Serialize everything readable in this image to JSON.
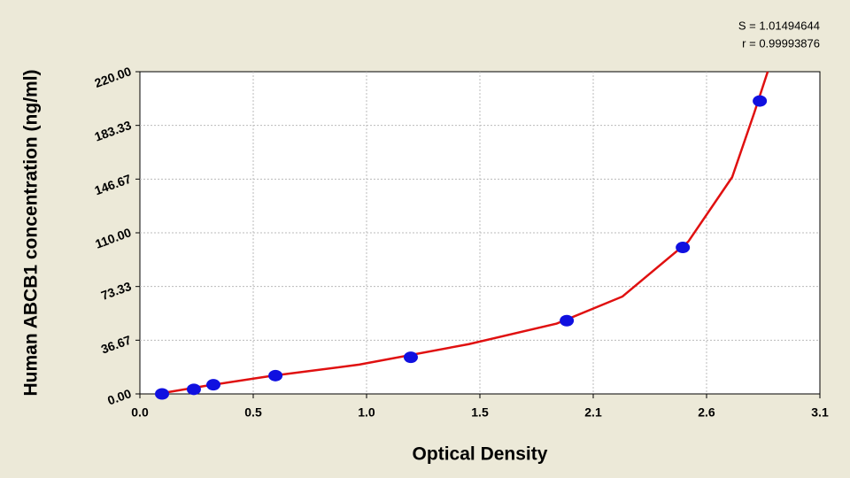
{
  "chart_data": {
    "type": "scatter",
    "annotations": [
      "S = 1.01494644",
      "r = 0.99993876"
    ],
    "x_label": "Optical Density",
    "y_label": "Human ABCB1 concentration (ng/ml)",
    "xlim": [
      0,
      3.1
    ],
    "ylim": [
      0,
      220
    ],
    "xticks": [
      {
        "value": 0,
        "label": "0.0"
      },
      {
        "value": 0.5167,
        "label": "0.5"
      },
      {
        "value": 1.0333,
        "label": "1.0"
      },
      {
        "value": 1.55,
        "label": "1.5"
      },
      {
        "value": 2.0667,
        "label": "2.1"
      },
      {
        "value": 2.5833,
        "label": "2.6"
      },
      {
        "value": 3.1,
        "label": "3.1"
      }
    ],
    "yticks": [
      {
        "value": 0,
        "label": "0.00"
      },
      {
        "value": 36.67,
        "label": "36.67"
      },
      {
        "value": 73.33,
        "label": "73.33"
      },
      {
        "value": 110,
        "label": "110.00"
      },
      {
        "value": 146.67,
        "label": "146.67"
      },
      {
        "value": 183.33,
        "label": "183.33"
      },
      {
        "value": 220,
        "label": "220.00"
      }
    ],
    "grid": true,
    "series": [
      {
        "kind": "points",
        "color": "#1010e0",
        "x": [
          0.101,
          0.246,
          0.335,
          0.618,
          1.235,
          1.946,
          2.475,
          2.826
        ],
        "values": [
          0,
          3.12,
          6.25,
          12.5,
          25,
          50,
          100,
          200
        ]
      },
      {
        "kind": "curve",
        "color": "#e01010",
        "x": [
          0.08,
          0.3,
          0.6,
          1.0,
          1.5,
          1.9,
          2.2,
          2.5,
          2.7,
          2.8,
          2.862
        ],
        "values": [
          0,
          5.5,
          12.3,
          20,
          34,
          48,
          66.5,
          104,
          148,
          191.6,
          220
        ]
      }
    ]
  }
}
